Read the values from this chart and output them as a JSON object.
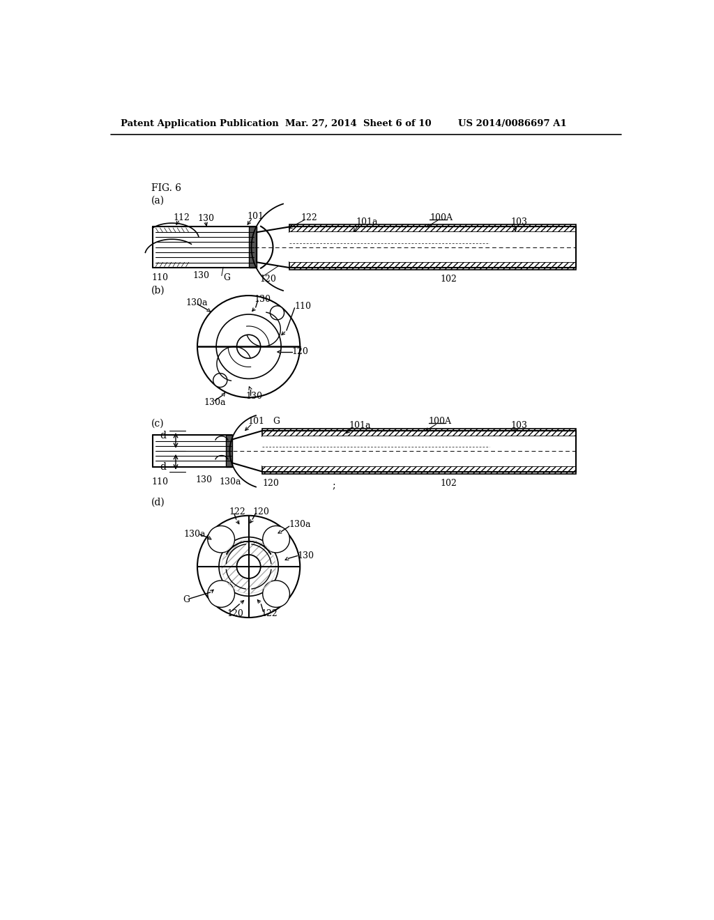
{
  "bg_color": "#ffffff",
  "text_color": "#000000",
  "line_color": "#000000",
  "header_left": "Patent Application Publication",
  "header_center": "Mar. 27, 2014  Sheet 6 of 10",
  "header_right": "US 2014/0086697 A1"
}
